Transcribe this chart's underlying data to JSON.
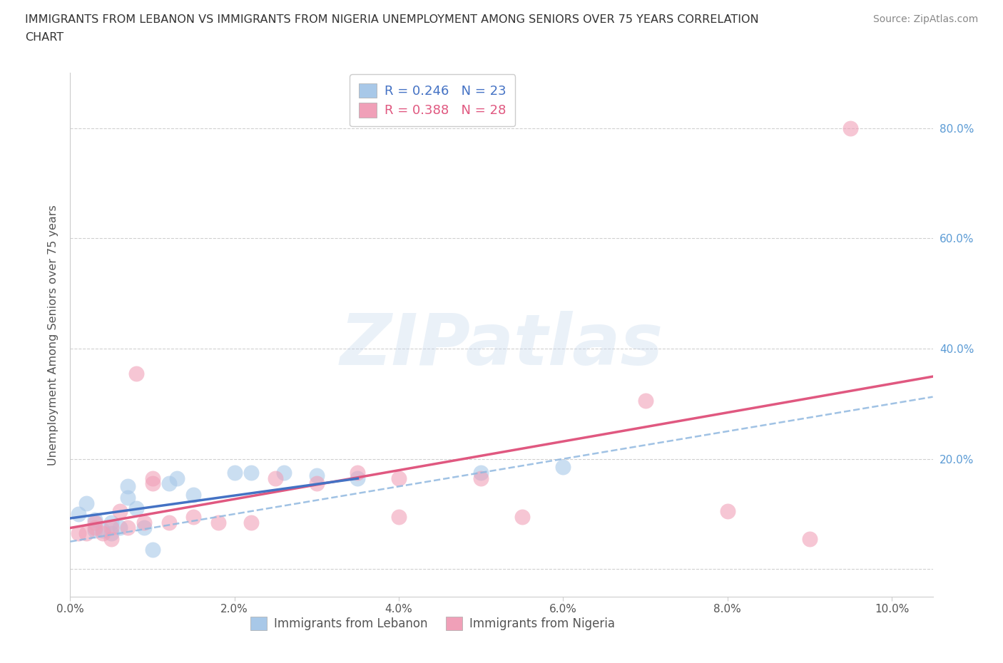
{
  "title_line1": "IMMIGRANTS FROM LEBANON VS IMMIGRANTS FROM NIGERIA UNEMPLOYMENT AMONG SENIORS OVER 75 YEARS CORRELATION",
  "title_line2": "CHART",
  "source": "Source: ZipAtlas.com",
  "ylabel": "Unemployment Among Seniors over 75 years",
  "xlim": [
    0.0,
    0.105
  ],
  "ylim": [
    -0.05,
    0.9
  ],
  "ytick_values": [
    0.0,
    0.2,
    0.4,
    0.6,
    0.8
  ],
  "ytick_labels_left": [
    "",
    "",
    "",
    "",
    ""
  ],
  "ytick_labels_right": [
    "",
    "20.0%",
    "40.0%",
    "60.0%",
    "80.0%"
  ],
  "xtick_values": [
    0.0,
    0.02,
    0.04,
    0.06,
    0.08,
    0.1
  ],
  "xtick_labels": [
    "0.0%",
    "2.0%",
    "4.0%",
    "6.0%",
    "8.0%",
    "10.0%"
  ],
  "r_lebanon": "R = 0.246",
  "n_lebanon": "N = 23",
  "r_nigeria": "R = 0.388",
  "n_nigeria": "N = 28",
  "legend_label_lebanon": "Immigrants from Lebanon",
  "legend_label_nigeria": "Immigrants from Nigeria",
  "lebanon_color": "#a8c8e8",
  "nigeria_color": "#f0a0b8",
  "lebanon_line_color": "#4472c4",
  "nigeria_line_color": "#e05880",
  "lebanon_dashed_color": "#90b8e0",
  "watermark": "ZIPatlas",
  "grid_color": "#d0d0d0",
  "bg_color": "#ffffff",
  "lebanon_scatter": [
    [
      0.001,
      0.1
    ],
    [
      0.002,
      0.12
    ],
    [
      0.003,
      0.07
    ],
    [
      0.003,
      0.09
    ],
    [
      0.004,
      0.07
    ],
    [
      0.005,
      0.065
    ],
    [
      0.005,
      0.085
    ],
    [
      0.006,
      0.075
    ],
    [
      0.007,
      0.13
    ],
    [
      0.007,
      0.15
    ],
    [
      0.008,
      0.11
    ],
    [
      0.009,
      0.075
    ],
    [
      0.01,
      0.035
    ],
    [
      0.012,
      0.155
    ],
    [
      0.013,
      0.165
    ],
    [
      0.015,
      0.135
    ],
    [
      0.02,
      0.175
    ],
    [
      0.022,
      0.175
    ],
    [
      0.026,
      0.175
    ],
    [
      0.03,
      0.17
    ],
    [
      0.035,
      0.165
    ],
    [
      0.05,
      0.175
    ],
    [
      0.06,
      0.185
    ]
  ],
  "nigeria_scatter": [
    [
      0.001,
      0.065
    ],
    [
      0.002,
      0.065
    ],
    [
      0.003,
      0.075
    ],
    [
      0.003,
      0.085
    ],
    [
      0.004,
      0.065
    ],
    [
      0.005,
      0.055
    ],
    [
      0.005,
      0.075
    ],
    [
      0.006,
      0.105
    ],
    [
      0.007,
      0.075
    ],
    [
      0.008,
      0.355
    ],
    [
      0.009,
      0.085
    ],
    [
      0.01,
      0.165
    ],
    [
      0.01,
      0.155
    ],
    [
      0.012,
      0.085
    ],
    [
      0.015,
      0.095
    ],
    [
      0.018,
      0.085
    ],
    [
      0.022,
      0.085
    ],
    [
      0.025,
      0.165
    ],
    [
      0.03,
      0.155
    ],
    [
      0.035,
      0.175
    ],
    [
      0.04,
      0.165
    ],
    [
      0.05,
      0.165
    ],
    [
      0.055,
      0.095
    ],
    [
      0.07,
      0.305
    ],
    [
      0.08,
      0.105
    ],
    [
      0.09,
      0.055
    ],
    [
      0.095,
      0.8
    ],
    [
      0.04,
      0.095
    ]
  ]
}
